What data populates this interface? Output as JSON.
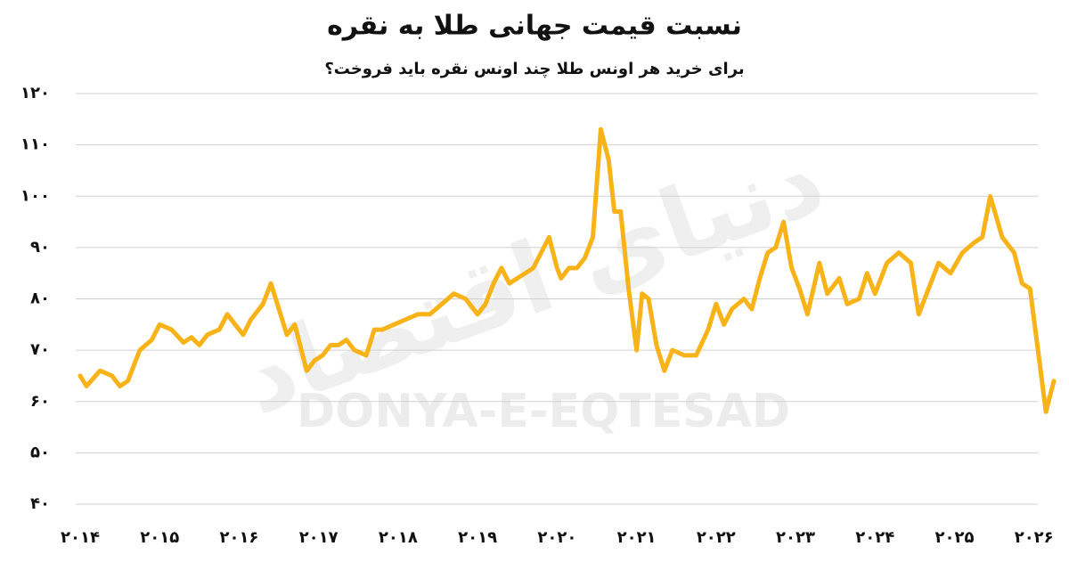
{
  "chart_data": {
    "type": "line",
    "title": "نسبت قیمت جهانی طلا به نقره",
    "subtitle": "برای خرید هر اونس طلا چند اونس نقره باید فروخت؟",
    "watermark": "DONYA-E-EQTESAD",
    "watermark_fa": "دنیای اقتصاد",
    "x": [
      2014.0,
      2014.08,
      2014.25,
      2014.4,
      2014.5,
      2014.6,
      2014.75,
      2014.9,
      2015.0,
      2015.15,
      2015.3,
      2015.4,
      2015.5,
      2015.6,
      2015.75,
      2015.85,
      2015.95,
      2016.05,
      2016.15,
      2016.3,
      2016.4,
      2016.5,
      2016.6,
      2016.7,
      2016.85,
      2016.95,
      2017.05,
      2017.15,
      2017.25,
      2017.35,
      2017.45,
      2017.6,
      2017.7,
      2017.8,
      2017.95,
      2018.1,
      2018.25,
      2018.4,
      2018.55,
      2018.7,
      2018.85,
      2019.0,
      2019.1,
      2019.2,
      2019.3,
      2019.4,
      2019.5,
      2019.6,
      2019.7,
      2019.8,
      2019.9,
      2020.0,
      2020.05,
      2020.15,
      2020.25,
      2020.35,
      2020.45,
      2020.55,
      2020.65,
      2020.72,
      2020.8,
      2020.9,
      2021.0,
      2021.07,
      2021.15,
      2021.25,
      2021.35,
      2021.45,
      2021.6,
      2021.75,
      2021.9,
      2022.0,
      2022.1,
      2022.2,
      2022.35,
      2022.45,
      2022.55,
      2022.65,
      2022.75,
      2022.85,
      2022.95,
      2023.05,
      2023.15,
      2023.3,
      2023.4,
      2023.55,
      2023.65,
      2023.8,
      2023.9,
      2024.0,
      2024.15,
      2024.3,
      2024.45,
      2024.55,
      2024.65,
      2024.8,
      2024.95,
      2025.1,
      2025.25,
      2025.35,
      2025.45,
      2025.6,
      2025.75,
      2025.85,
      2025.95,
      2026.05,
      2026.15,
      2026.25
    ],
    "series": [
      {
        "color": "#f7b318",
        "values": [
          65,
          63,
          66,
          65,
          63,
          64,
          70,
          72,
          75,
          74,
          71.5,
          72.5,
          71,
          73,
          74,
          77,
          75,
          73,
          76,
          79,
          83,
          78,
          73,
          75,
          66,
          68,
          69,
          71,
          71,
          72,
          70,
          69,
          74,
          74,
          75,
          76,
          77,
          77,
          79,
          81,
          80,
          77,
          79,
          83,
          86,
          83,
          84,
          85,
          86,
          89,
          92,
          86,
          84,
          86,
          86,
          88,
          92,
          113,
          107,
          97,
          97,
          82,
          70,
          81,
          80,
          71,
          66,
          70,
          69,
          69,
          74,
          79,
          75,
          78,
          80,
          78,
          84,
          89,
          90,
          95,
          86,
          82,
          77,
          87,
          81,
          84,
          79,
          80,
          85,
          81,
          87,
          89,
          87,
          77,
          81,
          87,
          85,
          89,
          91,
          92,
          100,
          92,
          89,
          83,
          82,
          70,
          58,
          64
        ]
      }
    ],
    "xlim": [
      2014,
      2026.25
    ],
    "ylim": [
      40,
      120
    ],
    "yticks": [
      {
        "value": 40,
        "label": "۴۰"
      },
      {
        "value": 50,
        "label": "۵۰"
      },
      {
        "value": 60,
        "label": "۶۰"
      },
      {
        "value": 70,
        "label": "۷۰"
      },
      {
        "value": 80,
        "label": "۸۰"
      },
      {
        "value": 90,
        "label": "۹۰"
      },
      {
        "value": 100,
        "label": "۱۰۰"
      },
      {
        "value": 110,
        "label": "۱۱۰"
      },
      {
        "value": 120,
        "label": "۱۲۰"
      }
    ],
    "xticks": [
      {
        "value": 2014,
        "label": "۲۰۱۴"
      },
      {
        "value": 2015,
        "label": "۲۰۱۵"
      },
      {
        "value": 2016,
        "label": "۲۰۱۶"
      },
      {
        "value": 2017,
        "label": "۲۰۱۷"
      },
      {
        "value": 2018,
        "label": "۲۰۱۸"
      },
      {
        "value": 2019,
        "label": "۲۰۱۹"
      },
      {
        "value": 2020,
        "label": "۲۰۲۰"
      },
      {
        "value": 2021,
        "label": "۲۰۲۱"
      },
      {
        "value": 2022,
        "label": "۲۰۲۲"
      },
      {
        "value": 2023,
        "label": "۲۰۲۳"
      },
      {
        "value": 2024,
        "label": "۲۰۲۴"
      },
      {
        "value": 2025,
        "label": "۲۰۲۵"
      },
      {
        "value": 2026,
        "label": "۲۰۲۶"
      }
    ],
    "grid": true
  }
}
